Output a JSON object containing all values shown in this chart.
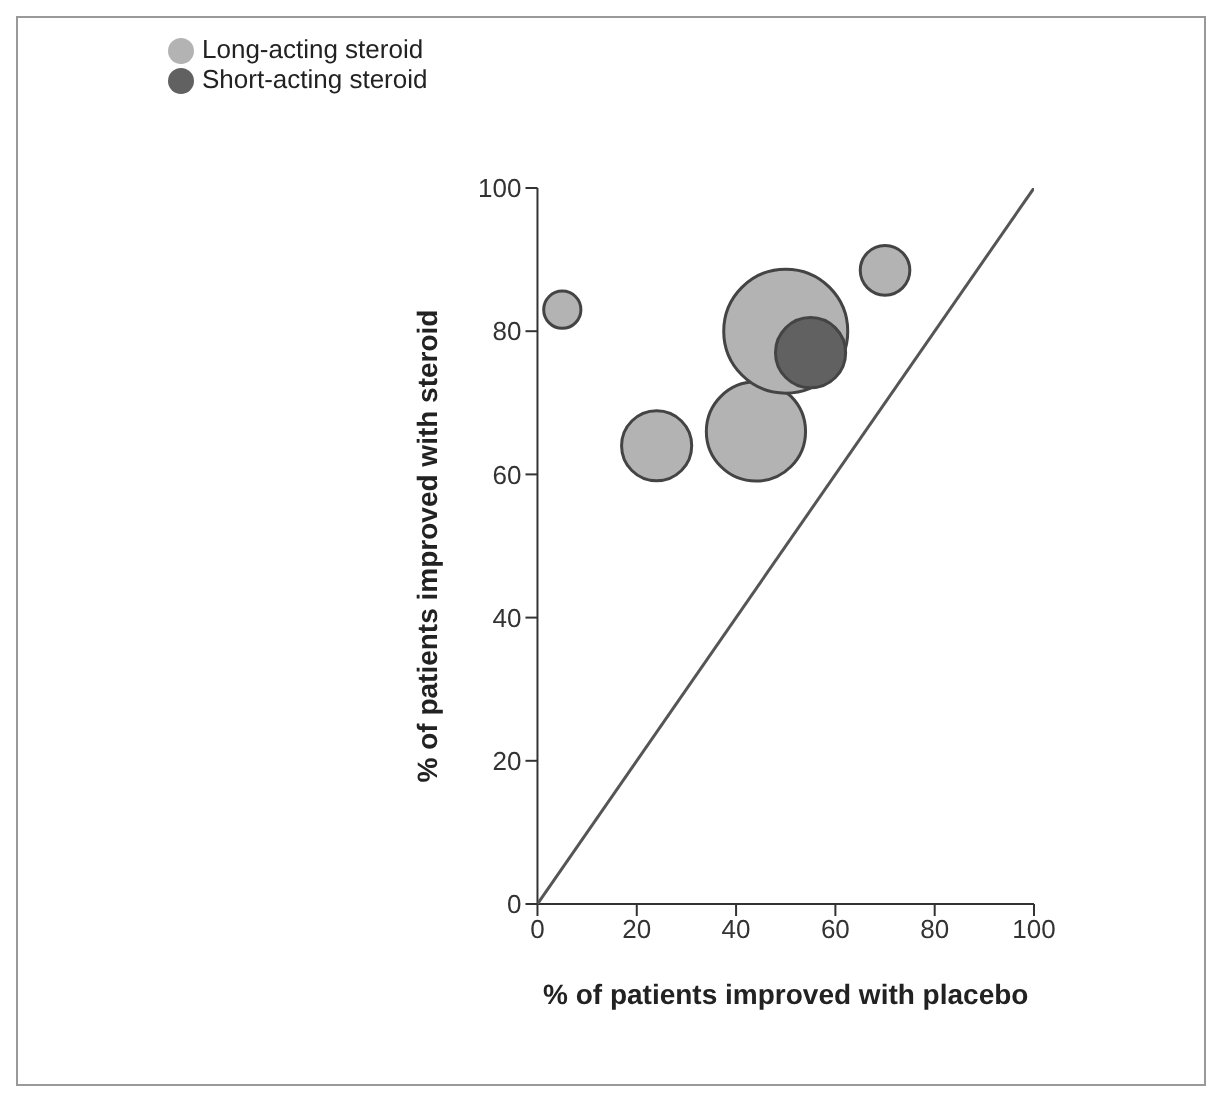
{
  "chart_data": {
    "type": "bubble",
    "xlabel": "% of patients improved with placebo",
    "ylabel": "% of patients improved with steroid",
    "xlim": [
      0,
      100
    ],
    "ylim": [
      0,
      100
    ],
    "xticks": [
      0,
      20,
      40,
      60,
      80,
      100
    ],
    "yticks": [
      0,
      20,
      40,
      60,
      80,
      100
    ],
    "grid": false,
    "legend": "top left",
    "series": [
      {
        "name": "Long-acting steroid",
        "color": "#b3b3b3",
        "x": [
          5,
          24,
          44,
          50,
          70
        ],
        "values": [
          83,
          64,
          66,
          80,
          88.5
        ],
        "sizes": [
          0.09,
          0.32,
          0.64,
          1,
          0.16
        ]
      },
      {
        "name": "Short-acting steroid",
        "color": "#616161",
        "x": [
          55
        ],
        "values": [
          77
        ],
        "sizes": [
          0.32
        ]
      },
      {
        "type": "line",
        "color": "#555555",
        "x": [
          0,
          100
        ],
        "values": [
          0,
          100
        ]
      }
    ]
  }
}
